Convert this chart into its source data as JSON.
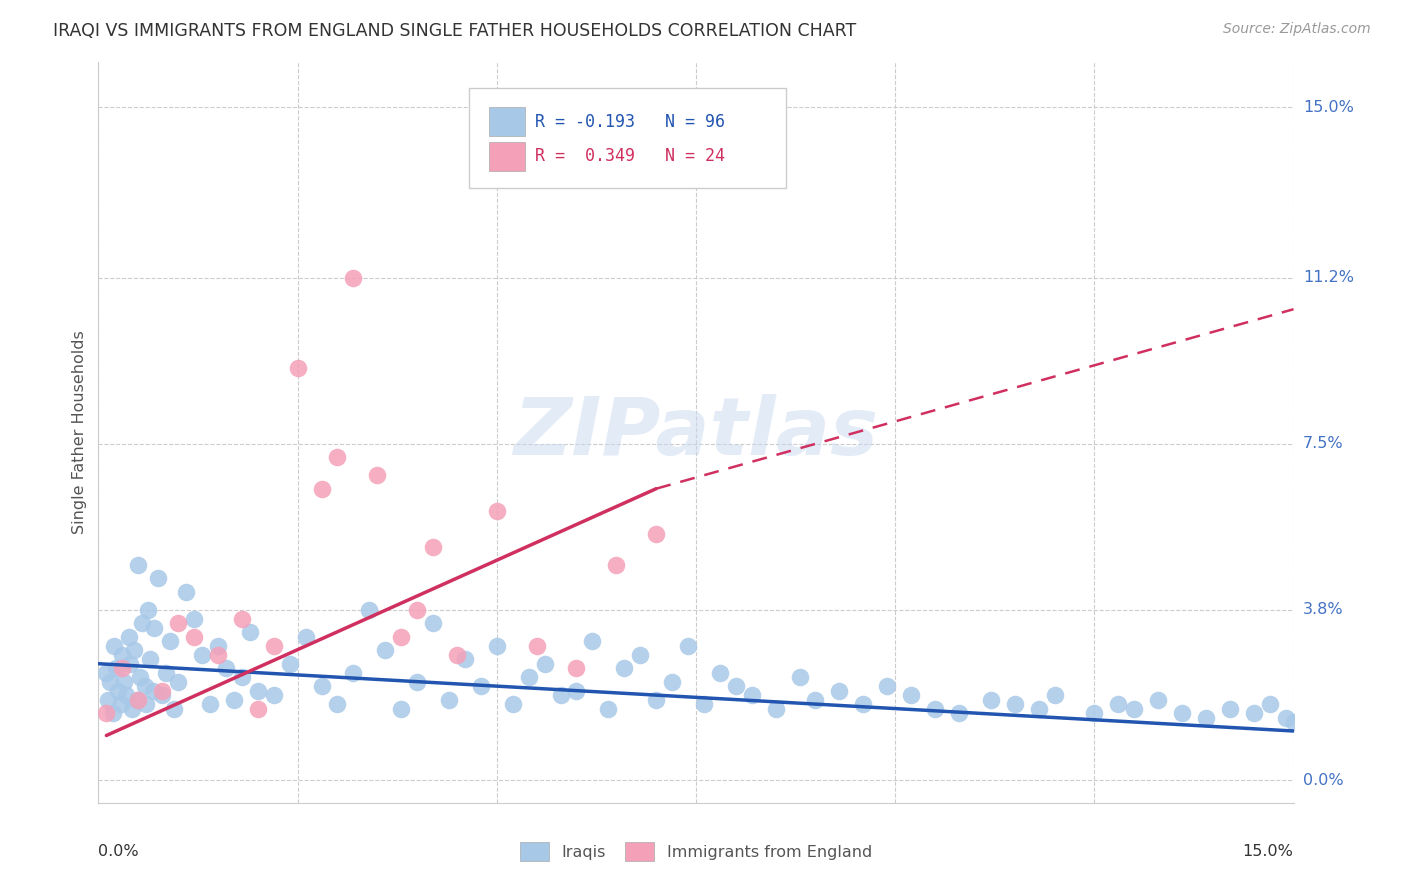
{
  "title": "IRAQI VS IMMIGRANTS FROM ENGLAND SINGLE FATHER HOUSEHOLDS CORRELATION CHART",
  "source": "Source: ZipAtlas.com",
  "ylabel": "Single Father Households",
  "xlim": [
    0.0,
    15.0
  ],
  "ylim": [
    -0.5,
    16.0
  ],
  "right_yticks": [
    0.0,
    3.8,
    7.5,
    11.2,
    15.0
  ],
  "right_ytick_labels": [
    "0.0%",
    "3.8%",
    "7.5%",
    "11.2%",
    "15.0%"
  ],
  "color_iraqis": "#a8c8e8",
  "color_england": "#f4a0b8",
  "color_line_iraqis": "#2255b0",
  "color_line_england": "#d03060",
  "r_iraqis": -0.193,
  "n_iraqis": 96,
  "r_england": 0.349,
  "n_england": 24,
  "iraqis_x": [
    0.1,
    0.12,
    0.15,
    0.18,
    0.2,
    0.22,
    0.25,
    0.28,
    0.3,
    0.32,
    0.35,
    0.38,
    0.4,
    0.42,
    0.45,
    0.48,
    0.5,
    0.52,
    0.55,
    0.58,
    0.6,
    0.62,
    0.65,
    0.68,
    0.7,
    0.75,
    0.8,
    0.85,
    0.9,
    0.95,
    1.0,
    1.1,
    1.2,
    1.3,
    1.4,
    1.5,
    1.6,
    1.7,
    1.8,
    1.9,
    2.0,
    2.2,
    2.4,
    2.6,
    2.8,
    3.0,
    3.2,
    3.4,
    3.6,
    3.8,
    4.0,
    4.2,
    4.4,
    4.6,
    4.8,
    5.0,
    5.2,
    5.4,
    5.6,
    5.8,
    6.0,
    6.2,
    6.4,
    6.6,
    6.8,
    7.0,
    7.2,
    7.4,
    7.6,
    7.8,
    8.0,
    8.2,
    8.5,
    8.8,
    9.0,
    9.3,
    9.6,
    9.9,
    10.2,
    10.5,
    10.8,
    11.2,
    11.5,
    11.8,
    12.0,
    12.5,
    12.8,
    13.0,
    13.3,
    13.6,
    13.9,
    14.2,
    14.5,
    14.7,
    14.9,
    15.0
  ],
  "iraqis_y": [
    2.4,
    1.8,
    2.2,
    1.5,
    3.0,
    2.5,
    2.0,
    1.7,
    2.8,
    2.2,
    1.9,
    3.2,
    2.6,
    1.6,
    2.9,
    1.8,
    4.8,
    2.3,
    3.5,
    2.1,
    1.7,
    3.8,
    2.7,
    2.0,
    3.4,
    4.5,
    1.9,
    2.4,
    3.1,
    1.6,
    2.2,
    4.2,
    3.6,
    2.8,
    1.7,
    3.0,
    2.5,
    1.8,
    2.3,
    3.3,
    2.0,
    1.9,
    2.6,
    3.2,
    2.1,
    1.7,
    2.4,
    3.8,
    2.9,
    1.6,
    2.2,
    3.5,
    1.8,
    2.7,
    2.1,
    3.0,
    1.7,
    2.3,
    2.6,
    1.9,
    2.0,
    3.1,
    1.6,
    2.5,
    2.8,
    1.8,
    2.2,
    3.0,
    1.7,
    2.4,
    2.1,
    1.9,
    1.6,
    2.3,
    1.8,
    2.0,
    1.7,
    2.1,
    1.9,
    1.6,
    1.5,
    1.8,
    1.7,
    1.6,
    1.9,
    1.5,
    1.7,
    1.6,
    1.8,
    1.5,
    1.4,
    1.6,
    1.5,
    1.7,
    1.4,
    1.3
  ],
  "england_x": [
    0.1,
    0.3,
    0.5,
    0.8,
    1.0,
    1.2,
    1.5,
    1.8,
    2.0,
    2.2,
    2.5,
    2.8,
    3.0,
    3.2,
    3.5,
    3.8,
    4.0,
    4.2,
    4.5,
    5.0,
    5.5,
    6.0,
    6.5,
    7.0
  ],
  "england_y": [
    1.5,
    2.5,
    1.8,
    2.0,
    3.5,
    3.2,
    2.8,
    3.6,
    1.6,
    3.0,
    9.2,
    6.5,
    7.2,
    11.2,
    6.8,
    3.2,
    3.8,
    5.2,
    2.8,
    6.0,
    3.0,
    2.5,
    4.8,
    5.5
  ],
  "line_iraqis_x0": 0.0,
  "line_iraqis_x1": 15.0,
  "line_iraqis_y0": 2.6,
  "line_iraqis_y1": 1.1,
  "line_england_solid_x0": 0.1,
  "line_england_solid_x1": 7.0,
  "line_england_y0": 1.0,
  "line_england_y1": 6.5,
  "line_england_dash_x0": 7.0,
  "line_england_dash_x1": 15.0,
  "line_england_dash_y0": 6.5,
  "line_england_dash_y1": 10.5
}
